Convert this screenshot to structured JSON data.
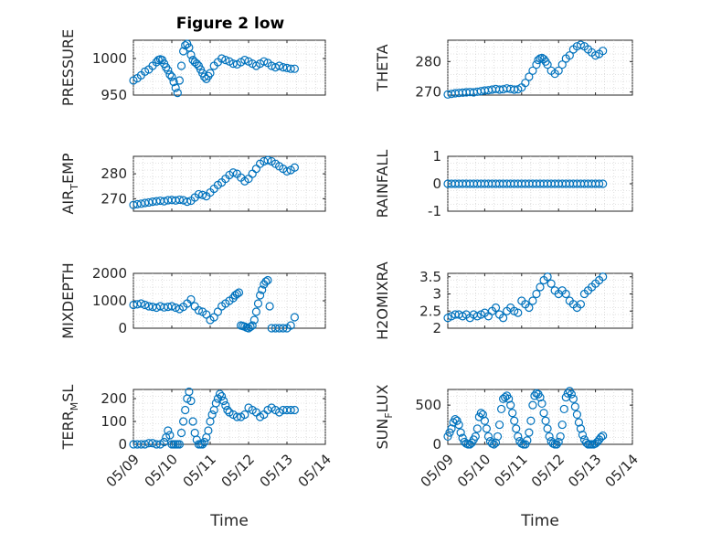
{
  "figure_title": "Figure 2 low",
  "marker_color": "#0072BD",
  "xlabel": "Time",
  "x_ticks": [
    "05/09",
    "05/10",
    "05/11",
    "05/12",
    "05/13",
    "05/14"
  ],
  "chart_data": [
    {
      "type": "scatter",
      "title": "Figure 2 low",
      "ylabel": "PRESSURE",
      "ylim": [
        950,
        1025
      ],
      "yticks": [
        950,
        1000
      ],
      "yticklabels": [
        "950",
        "1000"
      ],
      "x": [
        9.0,
        9.1,
        9.2,
        9.3,
        9.4,
        9.5,
        9.6,
        9.65,
        9.7,
        9.75,
        9.8,
        9.85,
        9.9,
        9.95,
        10.0,
        10.05,
        10.1,
        10.15,
        10.2,
        10.25,
        10.3,
        10.35,
        10.4,
        10.45,
        10.5,
        10.55,
        10.6,
        10.65,
        10.7,
        10.75,
        10.8,
        10.85,
        10.9,
        10.95,
        11.0,
        11.1,
        11.2,
        11.3,
        11.4,
        11.5,
        11.6,
        11.7,
        11.8,
        11.9,
        12.0,
        12.1,
        12.2,
        12.3,
        12.4,
        12.5,
        12.6,
        12.7,
        12.8,
        12.9,
        13.0,
        13.1,
        13.2
      ],
      "y": [
        970,
        973,
        977,
        982,
        985,
        990,
        995,
        998,
        999,
        998,
        993,
        988,
        984,
        978,
        975,
        968,
        960,
        953,
        970,
        990,
        1010,
        1018,
        1020,
        1015,
        1005,
        998,
        995,
        993,
        990,
        985,
        980,
        975,
        972,
        976,
        980,
        990,
        995,
        1000,
        998,
        996,
        993,
        992,
        995,
        998,
        996,
        993,
        990,
        993,
        996,
        994,
        990,
        988,
        990,
        988,
        987,
        986,
        986
      ]
    },
    {
      "type": "scatter",
      "ylabel": "THETA",
      "ylim": [
        269,
        287
      ],
      "yticks": [
        270,
        280
      ],
      "yticklabels": [
        "270",
        "280"
      ],
      "x": [
        9.0,
        9.1,
        9.2,
        9.3,
        9.4,
        9.5,
        9.6,
        9.7,
        9.8,
        9.9,
        10.0,
        10.1,
        10.2,
        10.3,
        10.4,
        10.5,
        10.6,
        10.7,
        10.8,
        10.9,
        11.0,
        11.1,
        11.2,
        11.3,
        11.4,
        11.45,
        11.5,
        11.55,
        11.6,
        11.65,
        11.7,
        11.8,
        11.9,
        12.0,
        12.1,
        12.2,
        12.3,
        12.4,
        12.5,
        12.6,
        12.7,
        12.8,
        12.9,
        13.0,
        13.1,
        13.2
      ],
      "y": [
        269.2,
        269.4,
        269.6,
        269.7,
        269.8,
        269.9,
        270.0,
        269.9,
        270.1,
        270.3,
        270.5,
        270.6,
        270.8,
        271.0,
        270.8,
        270.9,
        271.2,
        271.0,
        270.8,
        270.9,
        271.5,
        273,
        275,
        277,
        279,
        280.5,
        281,
        281.2,
        280.8,
        280,
        279,
        277,
        276,
        277,
        279,
        281,
        282,
        284,
        285,
        285.5,
        285,
        284,
        283,
        282,
        282.5,
        283.5
      ]
    },
    {
      "type": "scatter",
      "ylabel": "AIR_TEMP",
      "ylim": [
        265,
        287
      ],
      "yticks": [
        270,
        280
      ],
      "yticklabels": [
        "270",
        "280"
      ],
      "x": [
        9.0,
        9.1,
        9.2,
        9.3,
        9.4,
        9.5,
        9.6,
        9.7,
        9.8,
        9.9,
        10.0,
        10.1,
        10.2,
        10.3,
        10.4,
        10.5,
        10.6,
        10.7,
        10.8,
        10.9,
        11.0,
        11.1,
        11.2,
        11.3,
        11.4,
        11.5,
        11.6,
        11.7,
        11.8,
        11.9,
        12.0,
        12.1,
        12.2,
        12.3,
        12.4,
        12.5,
        12.6,
        12.7,
        12.8,
        12.9,
        13.0,
        13.1,
        13.2
      ],
      "y": [
        267.5,
        267.8,
        268.0,
        268.3,
        268.5,
        268.8,
        269.0,
        269.2,
        269.0,
        269.4,
        269.5,
        269.3,
        269.6,
        269.4,
        268.8,
        269.2,
        270.5,
        271.8,
        271.5,
        271.0,
        272.5,
        274.0,
        275.5,
        276.5,
        278.0,
        279.5,
        280.5,
        280.0,
        278.5,
        277.0,
        278.0,
        280.0,
        282.0,
        284.0,
        285.0,
        285.5,
        285.0,
        284.0,
        283.0,
        282.0,
        281.0,
        281.5,
        282.5
      ]
    },
    {
      "type": "scatter",
      "ylabel": "RAINFALL",
      "ylim": [
        -1,
        1
      ],
      "yticks": [
        -1,
        0,
        1
      ],
      "yticklabels": [
        "-1",
        "0",
        "1"
      ],
      "x": [
        9.0,
        9.1,
        9.2,
        9.3,
        9.4,
        9.5,
        9.6,
        9.7,
        9.8,
        9.9,
        10.0,
        10.1,
        10.2,
        10.3,
        10.4,
        10.5,
        10.6,
        10.7,
        10.8,
        10.9,
        11.0,
        11.1,
        11.2,
        11.3,
        11.4,
        11.5,
        11.6,
        11.7,
        11.8,
        11.9,
        12.0,
        12.1,
        12.2,
        12.3,
        12.4,
        12.5,
        12.6,
        12.7,
        12.8,
        12.9,
        13.0,
        13.1,
        13.2
      ],
      "y": [
        0,
        0,
        0,
        0,
        0,
        0,
        0,
        0,
        0,
        0,
        0,
        0,
        0,
        0,
        0,
        0,
        0,
        0,
        0,
        0,
        0,
        0,
        0,
        0,
        0,
        0,
        0,
        0,
        0,
        0,
        0,
        0,
        0,
        0,
        0,
        0,
        0,
        0,
        0,
        0,
        0,
        0,
        0
      ]
    },
    {
      "type": "scatter",
      "ylabel": "MIXDEPTH",
      "ylim": [
        0,
        2000
      ],
      "yticks": [
        0,
        1000,
        2000
      ],
      "yticklabels": [
        "0",
        "1000",
        "2000"
      ],
      "x": [
        9.0,
        9.1,
        9.2,
        9.3,
        9.4,
        9.5,
        9.6,
        9.7,
        9.8,
        9.9,
        10.0,
        10.1,
        10.2,
        10.3,
        10.4,
        10.5,
        10.6,
        10.7,
        10.8,
        10.9,
        11.0,
        11.1,
        11.2,
        11.3,
        11.4,
        11.5,
        11.6,
        11.65,
        11.7,
        11.75,
        11.8,
        11.85,
        11.9,
        11.95,
        12.0,
        12.05,
        12.1,
        12.15,
        12.2,
        12.25,
        12.3,
        12.35,
        12.4,
        12.45,
        12.5,
        12.55,
        12.6,
        12.7,
        12.8,
        12.9,
        13.0,
        13.1,
        13.2
      ],
      "y": [
        850,
        870,
        900,
        850,
        800,
        780,
        750,
        800,
        760,
        780,
        800,
        750,
        700,
        780,
        900,
        1050,
        800,
        650,
        600,
        500,
        300,
        400,
        600,
        800,
        900,
        1000,
        1100,
        1200,
        1250,
        1300,
        100,
        80,
        60,
        20,
        0,
        50,
        100,
        300,
        600,
        900,
        1200,
        1400,
        1600,
        1700,
        1750,
        800,
        0,
        0,
        0,
        0,
        0,
        100,
        400
      ]
    },
    {
      "type": "scatter",
      "ylabel": "H2OMIXRA",
      "ylim": [
        2,
        3.6
      ],
      "yticks": [
        2,
        2.5,
        3,
        3.5
      ],
      "yticklabels": [
        "2",
        "2.5",
        "3",
        "3.5"
      ],
      "x": [
        9.0,
        9.1,
        9.2,
        9.3,
        9.4,
        9.5,
        9.6,
        9.7,
        9.8,
        9.9,
        10.0,
        10.1,
        10.2,
        10.3,
        10.4,
        10.5,
        10.6,
        10.7,
        10.8,
        10.9,
        11.0,
        11.1,
        11.2,
        11.3,
        11.4,
        11.5,
        11.6,
        11.7,
        11.8,
        11.9,
        12.0,
        12.1,
        12.2,
        12.3,
        12.4,
        12.5,
        12.6,
        12.7,
        12.8,
        12.9,
        13.0,
        13.1,
        13.2
      ],
      "y": [
        2.3,
        2.35,
        2.4,
        2.4,
        2.35,
        2.4,
        2.3,
        2.4,
        2.35,
        2.4,
        2.45,
        2.35,
        2.5,
        2.6,
        2.4,
        2.3,
        2.5,
        2.6,
        2.5,
        2.45,
        2.8,
        2.7,
        2.6,
        2.8,
        3.0,
        3.2,
        3.4,
        3.5,
        3.3,
        3.1,
        3.0,
        3.1,
        3.0,
        2.8,
        2.7,
        2.6,
        2.7,
        3.0,
        3.1,
        3.2,
        3.3,
        3.4,
        3.5
      ]
    },
    {
      "type": "scatter",
      "ylabel": "TERR_MSL",
      "ylim": [
        0,
        240
      ],
      "yticks": [
        0,
        100,
        200
      ],
      "yticklabels": [
        "0",
        "100",
        "200"
      ],
      "x": [
        9.0,
        9.1,
        9.2,
        9.3,
        9.4,
        9.5,
        9.6,
        9.7,
        9.8,
        9.85,
        9.9,
        9.95,
        10.0,
        10.05,
        10.1,
        10.15,
        10.2,
        10.25,
        10.3,
        10.35,
        10.4,
        10.45,
        10.5,
        10.55,
        10.6,
        10.65,
        10.7,
        10.75,
        10.8,
        10.85,
        10.9,
        10.95,
        11.0,
        11.05,
        11.1,
        11.15,
        11.2,
        11.25,
        11.3,
        11.35,
        11.4,
        11.45,
        11.5,
        11.6,
        11.7,
        11.8,
        11.9,
        12.0,
        12.1,
        12.2,
        12.3,
        12.4,
        12.5,
        12.6,
        12.7,
        12.8,
        12.9,
        13.0,
        13.1,
        13.2
      ],
      "y": [
        0,
        0,
        0,
        0,
        5,
        5,
        0,
        0,
        10,
        30,
        60,
        40,
        0,
        0,
        0,
        0,
        0,
        50,
        100,
        150,
        200,
        230,
        190,
        100,
        50,
        20,
        0,
        0,
        0,
        10,
        30,
        60,
        100,
        130,
        150,
        180,
        200,
        220,
        210,
        190,
        170,
        150,
        140,
        130,
        120,
        120,
        130,
        160,
        150,
        140,
        120,
        130,
        150,
        160,
        150,
        140,
        150,
        150,
        150,
        150
      ]
    },
    {
      "type": "scatter",
      "ylabel": "SUN_FLUX",
      "ylim": [
        0,
        700
      ],
      "yticks": [
        0,
        500
      ],
      "yticklabels": [
        "0",
        "500"
      ],
      "x": [
        9.0,
        9.05,
        9.1,
        9.15,
        9.2,
        9.25,
        9.3,
        9.35,
        9.4,
        9.45,
        9.5,
        9.55,
        9.6,
        9.65,
        9.7,
        9.75,
        9.8,
        9.85,
        9.9,
        9.95,
        10.0,
        10.05,
        10.1,
        10.15,
        10.2,
        10.25,
        10.3,
        10.35,
        10.4,
        10.45,
        10.5,
        10.55,
        10.6,
        10.65,
        10.7,
        10.75,
        10.8,
        10.85,
        10.9,
        10.95,
        11.0,
        11.05,
        11.1,
        11.15,
        11.2,
        11.25,
        11.3,
        11.35,
        11.4,
        11.45,
        11.5,
        11.55,
        11.6,
        11.65,
        11.7,
        11.75,
        11.8,
        11.85,
        11.9,
        11.95,
        12.0,
        12.05,
        12.1,
        12.15,
        12.2,
        12.25,
        12.3,
        12.35,
        12.4,
        12.45,
        12.5,
        12.55,
        12.6,
        12.65,
        12.7,
        12.75,
        12.8,
        12.85,
        12.9,
        12.95,
        13.0,
        13.05,
        13.1,
        13.15,
        13.2
      ],
      "y": [
        100,
        150,
        200,
        280,
        320,
        300,
        250,
        150,
        80,
        30,
        10,
        0,
        0,
        20,
        60,
        100,
        200,
        350,
        400,
        380,
        300,
        200,
        100,
        40,
        10,
        0,
        20,
        100,
        250,
        450,
        580,
        600,
        620,
        580,
        500,
        400,
        300,
        200,
        100,
        40,
        10,
        0,
        0,
        50,
        150,
        300,
        500,
        620,
        650,
        640,
        600,
        520,
        400,
        300,
        200,
        100,
        40,
        10,
        0,
        0,
        30,
        100,
        250,
        450,
        600,
        650,
        680,
        640,
        580,
        480,
        380,
        280,
        200,
        120,
        60,
        20,
        0,
        0,
        0,
        0,
        10,
        30,
        60,
        90,
        110
      ]
    }
  ]
}
